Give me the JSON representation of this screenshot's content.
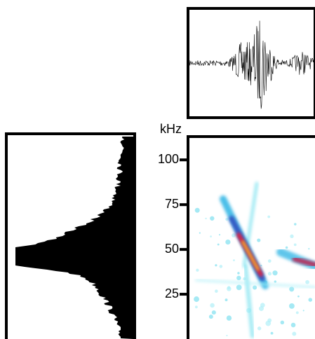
{
  "chart_data": {
    "type": "spectrogram",
    "y_label": "kHz",
    "ylim": [
      0,
      113
    ],
    "yticks": [
      25,
      50,
      75,
      100
    ]
  }
}
